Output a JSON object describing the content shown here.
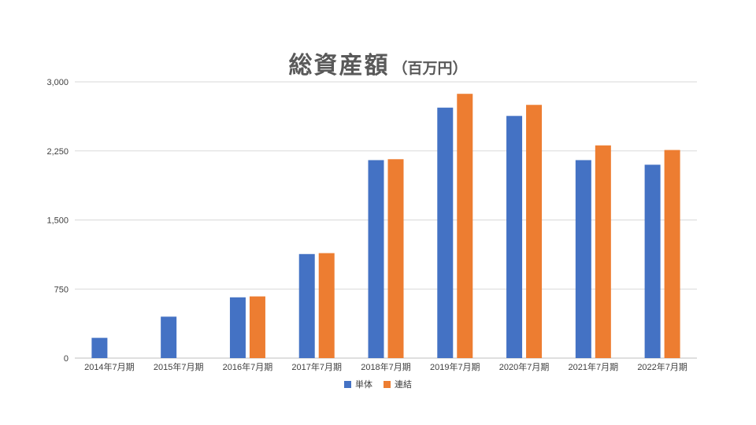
{
  "chart_data": {
    "type": "bar",
    "title": "総資産額",
    "subtitle": "（百万円）",
    "categories": [
      "2014年7月期",
      "2015年7月期",
      "2016年7月期",
      "2017年7月期",
      "2018年7月期",
      "2019年7月期",
      "2020年7月期",
      "2021年7月期",
      "2022年7月期"
    ],
    "series": [
      {
        "name": "単体",
        "color": "#4472C4",
        "values": [
          220,
          450,
          660,
          1130,
          2150,
          2720,
          2630,
          2150,
          2100
        ]
      },
      {
        "name": "連結",
        "color": "#ED7D31",
        "values": [
          null,
          null,
          670,
          1140,
          2160,
          2870,
          2750,
          2310,
          2260
        ]
      }
    ],
    "ylim": [
      0,
      3000
    ],
    "yticks": [
      0,
      750,
      1500,
      2250,
      3000
    ],
    "ytick_labels": [
      "0",
      "750",
      "1,500",
      "2,250",
      "3,000"
    ],
    "grid": true,
    "legend": "bottom"
  }
}
